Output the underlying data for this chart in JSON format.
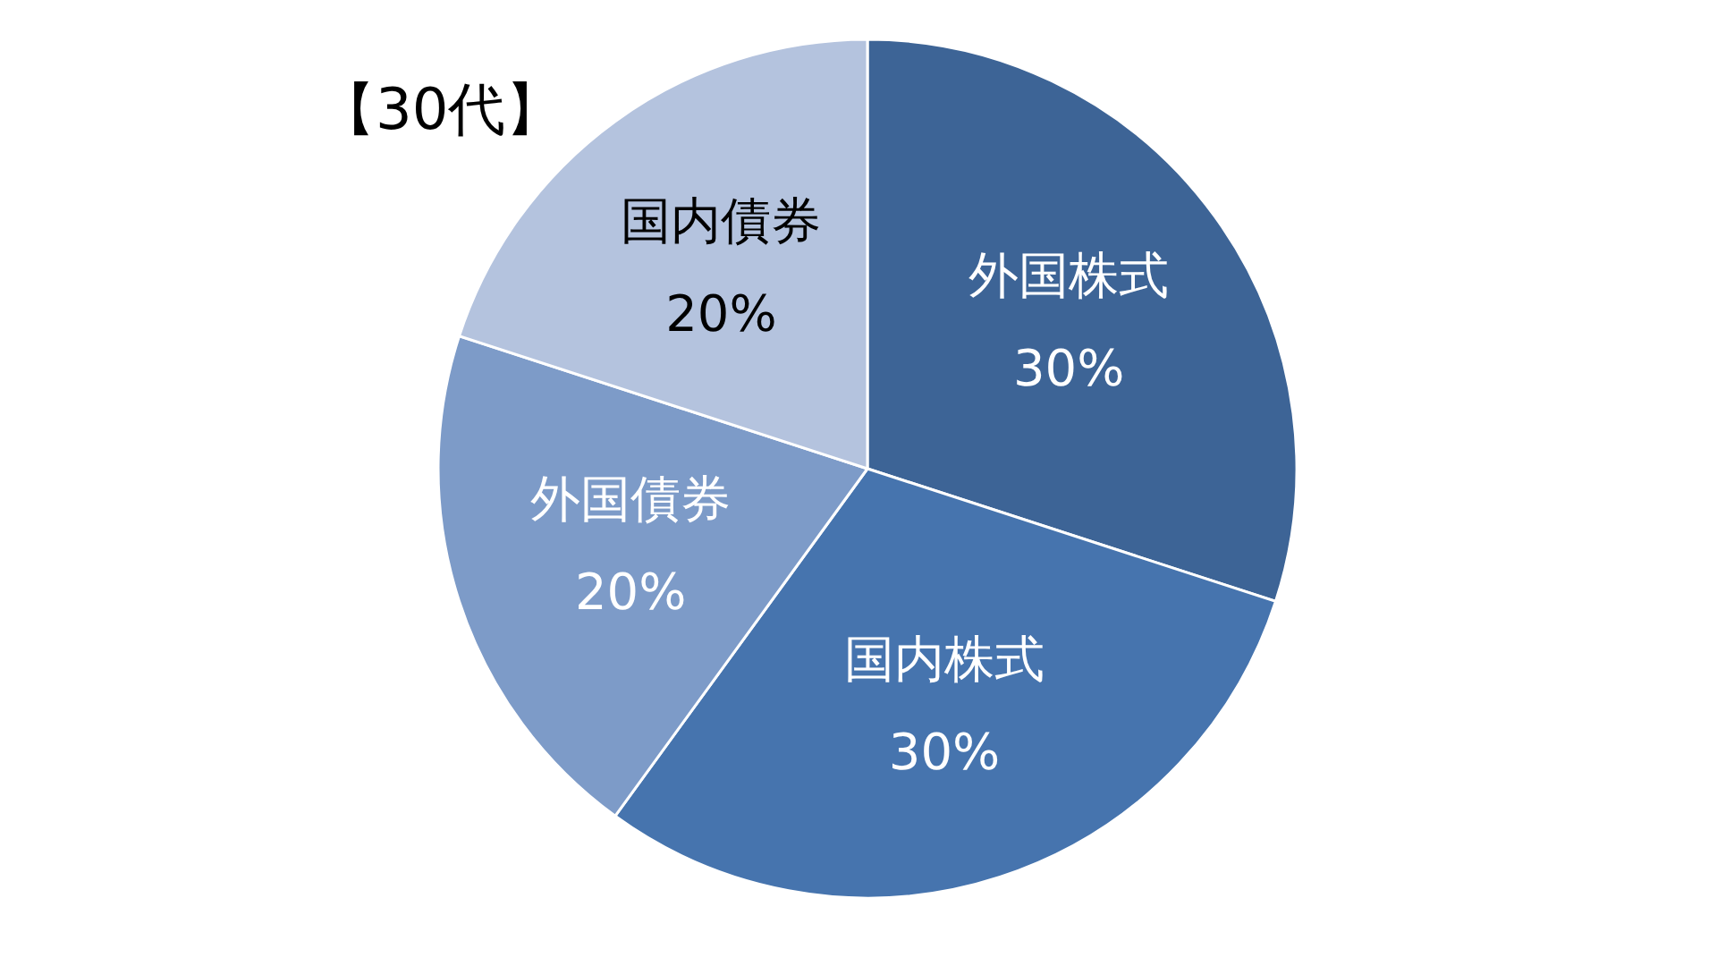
{
  "chart_data": {
    "type": "pie",
    "title": "【30代】",
    "categories": [
      "外国株式",
      "国内株式",
      "外国債券",
      "国内債券"
    ],
    "values": [
      30,
      30,
      20,
      20
    ],
    "value_labels": [
      "30%",
      "30%",
      "20%",
      "20%"
    ],
    "colors": [
      "#3d6496",
      "#4674ae",
      "#7d9bc8",
      "#b4c3de"
    ]
  }
}
